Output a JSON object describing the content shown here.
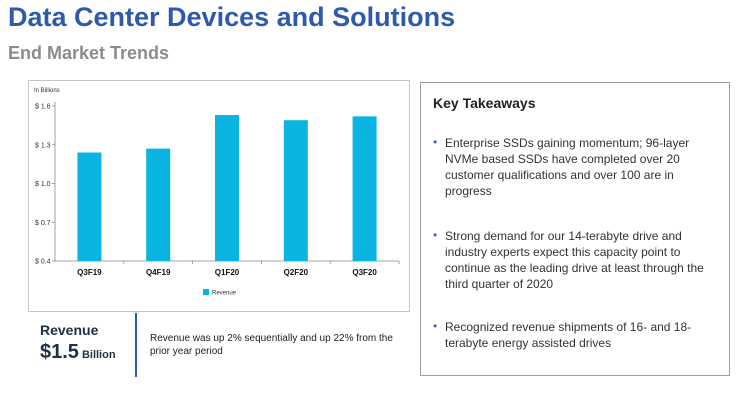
{
  "header": {
    "title": "Data Center Devices and Solutions",
    "subtitle": "End Market Trends"
  },
  "colors": {
    "title": "#2e5aac",
    "subtitle": "#8c8c8c",
    "bar": "#0ab4e1",
    "bullet": "#3a66b8"
  },
  "chart_data": {
    "type": "bar",
    "ylabel": "In Billions",
    "categories": [
      "Q3F19",
      "Q4F19",
      "Q1F20",
      "Q2F20",
      "Q3F20"
    ],
    "series": [
      {
        "name": "Revenue",
        "values": [
          1.24,
          1.27,
          1.53,
          1.49,
          1.52
        ]
      }
    ],
    "yticks": [
      "$ 0.4",
      "$ 0.7",
      "$ 1.0",
      "$ 1.3",
      "$ 1.6"
    ],
    "ylim": [
      0.4,
      1.6
    ],
    "legend_position": "bottom",
    "grid": false
  },
  "revenue": {
    "label": "Revenue",
    "value": "$1.5",
    "unit": "Billion",
    "description": "Revenue was up 2% sequentially and up 22% from the prior year period"
  },
  "takeaways": {
    "title": "Key Takeaways",
    "items": [
      "Enterprise SSDs gaining momentum; 96-layer NVMe based SSDs have completed over 20 customer qualifications and over 100 are in progress",
      "Strong demand for our 14-terabyte drive and industry experts expect this capacity point to continue as the leading drive at least through the third quarter of 2020",
      "Recognized revenue shipments of 16- and 18-terabyte energy assisted drives"
    ]
  }
}
